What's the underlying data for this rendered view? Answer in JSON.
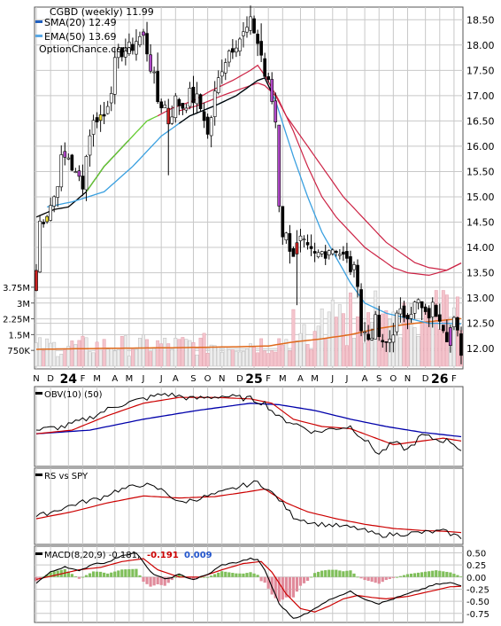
{
  "header": {
    "title": "CGBD (weekly) 11.99",
    "legend": [
      {
        "label": "SMA(20) 12.49",
        "color": "#000000"
      },
      {
        "label": "EMA(50) 13.69",
        "color": "#5aa9e6"
      }
    ],
    "brand": "OptionChance.com"
  },
  "colors": {
    "grid": "#c8c8c8",
    "frame": "#555555",
    "up_candle": "#ffffff",
    "down_candle": "#000000",
    "sma": "#000000",
    "ema": "#3aa0e0",
    "ema_green": "#66cc33",
    "long_ma": "#cc2244",
    "volume_up": "#ededed",
    "volume_down": "#f4c4cc",
    "volume_avg": "#e06a1c",
    "obv": "#000000",
    "obv_fast": "#cc0000",
    "obv_slow": "#0000aa",
    "macd_pos": "#7fbf5a",
    "macd_neg": "#e08b9b",
    "macd_val1": "#cc0000",
    "macd_val2": "#2255cc"
  },
  "x_axis": {
    "labels": [
      {
        "text": "N",
        "week": 0,
        "bold": false
      },
      {
        "text": "D",
        "week": 4,
        "bold": false
      },
      {
        "text": "24",
        "week": 9,
        "bold": true
      },
      {
        "text": "F",
        "week": 13,
        "bold": false
      },
      {
        "text": "M",
        "week": 17,
        "bold": false
      },
      {
        "text": "A",
        "week": 22,
        "bold": false
      },
      {
        "text": "M",
        "week": 26,
        "bold": false
      },
      {
        "text": "J",
        "week": 30,
        "bold": false
      },
      {
        "text": "J",
        "week": 35,
        "bold": false
      },
      {
        "text": "A",
        "week": 39,
        "bold": false
      },
      {
        "text": "S",
        "week": 44,
        "bold": false
      },
      {
        "text": "O",
        "week": 48,
        "bold": false
      },
      {
        "text": "N",
        "week": 52,
        "bold": false
      },
      {
        "text": "D",
        "week": 57,
        "bold": false
      },
      {
        "text": "25",
        "week": 61,
        "bold": true
      },
      {
        "text": "F",
        "week": 65,
        "bold": false
      },
      {
        "text": "M",
        "week": 69,
        "bold": false
      },
      {
        "text": "A",
        "week": 74,
        "bold": false
      },
      {
        "text": "M",
        "week": 78,
        "bold": false
      },
      {
        "text": "J",
        "week": 83,
        "bold": false
      },
      {
        "text": "J",
        "week": 87,
        "bold": false
      },
      {
        "text": "A",
        "week": 92,
        "bold": false
      },
      {
        "text": "S",
        "week": 96,
        "bold": false
      },
      {
        "text": "O",
        "week": 100,
        "bold": false
      },
      {
        "text": "N",
        "week": 104,
        "bold": false
      },
      {
        "text": "D",
        "week": 109,
        "bold": false
      },
      {
        "text": "26",
        "week": 113,
        "bold": true
      },
      {
        "text": "F",
        "week": 117,
        "bold": false
      }
    ]
  },
  "price_panel": {
    "ylim": [
      11.6,
      18.75
    ],
    "ticks": [
      "12.00",
      "12.50",
      "13.00",
      "13.50",
      "14.00",
      "14.50",
      "15.00",
      "15.50",
      "16.00",
      "16.50",
      "17.00",
      "17.50",
      "18.00",
      "18.50"
    ]
  },
  "volume_panel": {
    "ylim": [
      0,
      4000000
    ],
    "ticks": [
      {
        "value": 750000,
        "label": "750K"
      },
      {
        "value": 1500000,
        "label": "1.5M"
      },
      {
        "value": 2250000,
        "label": "2.25M"
      },
      {
        "value": 3000000,
        "label": "3M"
      },
      {
        "value": 3750000,
        "label": "3.75M"
      }
    ]
  },
  "obv_panel": {
    "label": "OBV(10) (50)"
  },
  "rs_panel": {
    "label": "RS vs SPY"
  },
  "macd_panel": {
    "label": "MACD(8,20,9) -0.181,",
    "value1": "-0.191",
    "value2": "0.009",
    "ylim": [
      -0.9,
      0.6
    ],
    "ticks": [
      {
        "value": 0.5,
        "label": "0.50"
      },
      {
        "value": 0.25,
        "label": "0.25"
      },
      {
        "value": 0.0,
        "label": "0.00"
      },
      {
        "value": -0.25,
        "label": "-0.25"
      },
      {
        "value": -0.5,
        "label": "-0.50"
      },
      {
        "value": -0.75,
        "label": "-0.75"
      }
    ]
  },
  "chart_data": {
    "type": "candlestick",
    "title": "CGBD (weekly) 11.99",
    "weeks": 120,
    "price_ylim": [
      11.6,
      18.75
    ],
    "close_anchors": [
      [
        0,
        13.55
      ],
      [
        1,
        14.5
      ],
      [
        3,
        14.7
      ],
      [
        5,
        15.0
      ],
      [
        7,
        15.7
      ],
      [
        9,
        15.8
      ],
      [
        11,
        15.4
      ],
      [
        13,
        15.3
      ],
      [
        15,
        16.3
      ],
      [
        17,
        16.6
      ],
      [
        19,
        16.6
      ],
      [
        21,
        17.2
      ],
      [
        22,
        17.6
      ],
      [
        24,
        17.9
      ],
      [
        26,
        17.9
      ],
      [
        28,
        18.1
      ],
      [
        30,
        18.2
      ],
      [
        32,
        17.6
      ],
      [
        33,
        17.3
      ],
      [
        34,
        16.9
      ],
      [
        36,
        16.8
      ],
      [
        37,
        16.5
      ],
      [
        39,
        16.9
      ],
      [
        41,
        16.8
      ],
      [
        43,
        17.0
      ],
      [
        45,
        16.9
      ],
      [
        47,
        16.6
      ],
      [
        48,
        16.2
      ],
      [
        50,
        17.0
      ],
      [
        52,
        17.6
      ],
      [
        54,
        17.9
      ],
      [
        56,
        18.1
      ],
      [
        58,
        18.2
      ],
      [
        60,
        18.4
      ],
      [
        61,
        18.3
      ],
      [
        63,
        17.8
      ],
      [
        64,
        17.4
      ],
      [
        65,
        17.2
      ],
      [
        66,
        16.9
      ],
      [
        67,
        16.5
      ],
      [
        68,
        14.9
      ],
      [
        69,
        14.3
      ],
      [
        70,
        14.2
      ],
      [
        72,
        13.9
      ],
      [
        74,
        14.1
      ],
      [
        76,
        13.9
      ],
      [
        78,
        13.8
      ],
      [
        80,
        13.9
      ],
      [
        82,
        14.0
      ],
      [
        84,
        14.0
      ],
      [
        86,
        13.8
      ],
      [
        88,
        13.6
      ],
      [
        90,
        13.4
      ],
      [
        91,
        12.4
      ],
      [
        93,
        12.2
      ],
      [
        95,
        12.5
      ],
      [
        97,
        12.0
      ],
      [
        99,
        12.2
      ],
      [
        101,
        12.6
      ],
      [
        103,
        12.7
      ],
      [
        105,
        12.8
      ],
      [
        107,
        12.9
      ],
      [
        109,
        12.6
      ],
      [
        111,
        12.8
      ],
      [
        113,
        12.7
      ],
      [
        115,
        12.3
      ],
      [
        117,
        12.5
      ],
      [
        119,
        11.99
      ]
    ],
    "sma20_anchors": [
      [
        3,
        14.8
      ],
      [
        10,
        14.9
      ],
      [
        19,
        15.1
      ],
      [
        27,
        15.6
      ],
      [
        35,
        16.2
      ],
      [
        43,
        16.6
      ],
      [
        50,
        16.8
      ],
      [
        56,
        17.0
      ],
      [
        62,
        17.3
      ],
      [
        64,
        17.35
      ],
      [
        67,
        16.9
      ],
      [
        72,
        15.8
      ],
      [
        76,
        15.0
      ],
      [
        80,
        14.3
      ],
      [
        84,
        13.8
      ],
      [
        88,
        13.3
      ],
      [
        92,
        12.9
      ],
      [
        98,
        12.7
      ],
      [
        104,
        12.6
      ],
      [
        110,
        12.5
      ],
      [
        115,
        12.5
      ],
      [
        119,
        12.49
      ]
    ],
    "ema50_anchors": [
      [
        0,
        14.6
      ],
      [
        5,
        14.75
      ],
      [
        9,
        14.8
      ],
      [
        14,
        15.1
      ],
      [
        19,
        15.6
      ],
      [
        23,
        15.9
      ],
      [
        27,
        16.2
      ],
      [
        31,
        16.5
      ],
      [
        34,
        16.6
      ],
      [
        38,
        16.75
      ],
      [
        44,
        16.9
      ],
      [
        49,
        17.1
      ],
      [
        55,
        17.3
      ],
      [
        60,
        17.5
      ],
      [
        62,
        17.6
      ],
      [
        64,
        17.4
      ],
      [
        68,
        16.9
      ],
      [
        72,
        16.3
      ],
      [
        76,
        15.6
      ],
      [
        80,
        15.0
      ],
      [
        84,
        14.6
      ],
      [
        88,
        14.3
      ],
      [
        92,
        14.0
      ],
      [
        96,
        13.8
      ],
      [
        100,
        13.6
      ],
      [
        104,
        13.5
      ],
      [
        110,
        13.45
      ],
      [
        115,
        13.55
      ],
      [
        119,
        13.69
      ]
    ],
    "long_ma_anchors": [
      [
        40,
        16.7
      ],
      [
        45,
        16.8
      ],
      [
        52,
        17.0
      ],
      [
        58,
        17.15
      ],
      [
        62,
        17.25
      ],
      [
        64,
        17.2
      ],
      [
        67,
        17.0
      ],
      [
        70,
        16.6
      ],
      [
        74,
        16.2
      ],
      [
        78,
        15.8
      ],
      [
        82,
        15.4
      ],
      [
        86,
        15.0
      ],
      [
        90,
        14.7
      ],
      [
        94,
        14.4
      ],
      [
        98,
        14.1
      ],
      [
        102,
        13.9
      ],
      [
        106,
        13.7
      ],
      [
        110,
        13.6
      ],
      [
        115,
        13.55
      ],
      [
        119,
        13.69
      ]
    ],
    "volume_avg_anchors": [
      [
        0,
        800000
      ],
      [
        20,
        850000
      ],
      [
        40,
        880000
      ],
      [
        55,
        920000
      ],
      [
        65,
        960000
      ],
      [
        72,
        1150000
      ],
      [
        80,
        1300000
      ],
      [
        88,
        1500000
      ],
      [
        96,
        1800000
      ],
      [
        104,
        2000000
      ],
      [
        112,
        2150000
      ],
      [
        119,
        2260000
      ]
    ],
    "obv_range": [
      0,
      1
    ],
    "obv_anchors": [
      [
        0,
        0.45
      ],
      [
        8,
        0.5
      ],
      [
        15,
        0.62
      ],
      [
        22,
        0.78
      ],
      [
        30,
        0.88
      ],
      [
        36,
        0.95
      ],
      [
        44,
        0.88
      ],
      [
        52,
        0.92
      ],
      [
        60,
        0.88
      ],
      [
        64,
        0.82
      ],
      [
        68,
        0.62
      ],
      [
        72,
        0.55
      ],
      [
        78,
        0.42
      ],
      [
        84,
        0.48
      ],
      [
        88,
        0.5
      ],
      [
        92,
        0.32
      ],
      [
        96,
        0.12
      ],
      [
        100,
        0.28
      ],
      [
        104,
        0.18
      ],
      [
        108,
        0.38
      ],
      [
        112,
        0.32
      ],
      [
        116,
        0.3
      ],
      [
        119,
        0.18
      ]
    ],
    "obv_fast_anchors": [
      [
        0,
        0.4
      ],
      [
        10,
        0.45
      ],
      [
        20,
        0.65
      ],
      [
        30,
        0.82
      ],
      [
        40,
        0.9
      ],
      [
        50,
        0.9
      ],
      [
        60,
        0.88
      ],
      [
        66,
        0.82
      ],
      [
        72,
        0.6
      ],
      [
        80,
        0.5
      ],
      [
        88,
        0.47
      ],
      [
        94,
        0.36
      ],
      [
        100,
        0.25
      ],
      [
        108,
        0.3
      ],
      [
        114,
        0.34
      ],
      [
        119,
        0.3
      ]
    ],
    "obv_slow_anchors": [
      [
        0,
        0.4
      ],
      [
        15,
        0.45
      ],
      [
        30,
        0.6
      ],
      [
        45,
        0.72
      ],
      [
        60,
        0.82
      ],
      [
        68,
        0.8
      ],
      [
        78,
        0.72
      ],
      [
        88,
        0.6
      ],
      [
        98,
        0.5
      ],
      [
        108,
        0.42
      ],
      [
        119,
        0.36
      ]
    ],
    "rs_range": [
      0,
      1
    ],
    "rs_anchors": [
      [
        0,
        0.35
      ],
      [
        6,
        0.45
      ],
      [
        12,
        0.55
      ],
      [
        18,
        0.62
      ],
      [
        22,
        0.72
      ],
      [
        30,
        0.82
      ],
      [
        36,
        0.72
      ],
      [
        40,
        0.55
      ],
      [
        46,
        0.62
      ],
      [
        52,
        0.7
      ],
      [
        58,
        0.8
      ],
      [
        62,
        0.85
      ],
      [
        64,
        0.78
      ],
      [
        68,
        0.6
      ],
      [
        72,
        0.35
      ],
      [
        78,
        0.25
      ],
      [
        84,
        0.22
      ],
      [
        90,
        0.18
      ],
      [
        96,
        0.08
      ],
      [
        102,
        0.1
      ],
      [
        108,
        0.12
      ],
      [
        114,
        0.14
      ],
      [
        119,
        0.05
      ]
    ],
    "rs_slow_anchors": [
      [
        0,
        0.32
      ],
      [
        10,
        0.42
      ],
      [
        20,
        0.55
      ],
      [
        30,
        0.65
      ],
      [
        40,
        0.62
      ],
      [
        50,
        0.64
      ],
      [
        58,
        0.7
      ],
      [
        64,
        0.75
      ],
      [
        70,
        0.55
      ],
      [
        76,
        0.42
      ],
      [
        84,
        0.32
      ],
      [
        92,
        0.24
      ],
      [
        100,
        0.18
      ],
      [
        108,
        0.15
      ],
      [
        114,
        0.14
      ],
      [
        119,
        0.12
      ]
    ],
    "macd_anchors": [
      [
        0,
        -0.12
      ],
      [
        4,
        0.1
      ],
      [
        8,
        0.22
      ],
      [
        12,
        0.12
      ],
      [
        16,
        0.28
      ],
      [
        20,
        0.3
      ],
      [
        24,
        0.45
      ],
      [
        28,
        0.5
      ],
      [
        32,
        0.1
      ],
      [
        36,
        -0.05
      ],
      [
        40,
        0.05
      ],
      [
        44,
        -0.05
      ],
      [
        48,
        0.05
      ],
      [
        52,
        0.25
      ],
      [
        56,
        0.3
      ],
      [
        60,
        0.38
      ],
      [
        62,
        0.35
      ],
      [
        64,
        0.15
      ],
      [
        68,
        -0.55
      ],
      [
        72,
        -0.85
      ],
      [
        76,
        -0.75
      ],
      [
        80,
        -0.55
      ],
      [
        84,
        -0.4
      ],
      [
        88,
        -0.3
      ],
      [
        92,
        -0.45
      ],
      [
        96,
        -0.55
      ],
      [
        100,
        -0.45
      ],
      [
        104,
        -0.35
      ],
      [
        108,
        -0.25
      ],
      [
        112,
        -0.15
      ],
      [
        116,
        -0.12
      ],
      [
        119,
        -0.18
      ]
    ],
    "macd_signal_anchors": [
      [
        0,
        -0.05
      ],
      [
        6,
        0.05
      ],
      [
        12,
        0.15
      ],
      [
        18,
        0.2
      ],
      [
        24,
        0.32
      ],
      [
        30,
        0.38
      ],
      [
        34,
        0.15
      ],
      [
        40,
        0.0
      ],
      [
        46,
        0.0
      ],
      [
        52,
        0.15
      ],
      [
        58,
        0.28
      ],
      [
        63,
        0.32
      ],
      [
        66,
        0.1
      ],
      [
        70,
        -0.35
      ],
      [
        74,
        -0.65
      ],
      [
        78,
        -0.72
      ],
      [
        82,
        -0.6
      ],
      [
        86,
        -0.45
      ],
      [
        90,
        -0.38
      ],
      [
        94,
        -0.42
      ],
      [
        98,
        -0.45
      ],
      [
        104,
        -0.4
      ],
      [
        110,
        -0.3
      ],
      [
        116,
        -0.2
      ],
      [
        119,
        -0.19
      ]
    ]
  }
}
